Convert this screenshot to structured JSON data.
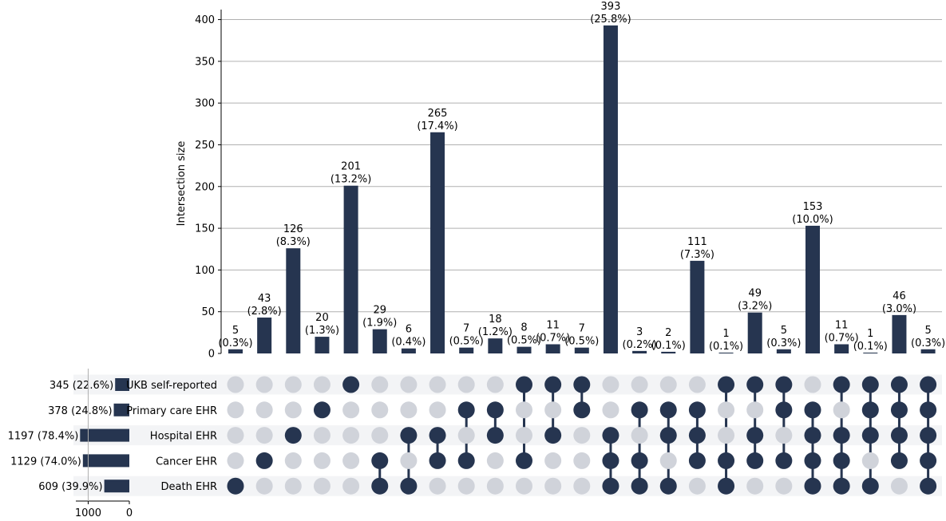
{
  "chart_data": {
    "type": "bar",
    "subtype": "upset",
    "ylabel": "Intersection size",
    "ylim": [
      0,
      412
    ],
    "yticks": [
      0,
      50,
      100,
      150,
      200,
      250,
      300,
      350,
      400
    ],
    "grid": true,
    "colors": {
      "bar": "#263550",
      "dot_active": "#263550",
      "dot_inactive": "#d0d3da",
      "stripe": "#f3f4f6",
      "grid": "#b0b0b0"
    },
    "sets": [
      {
        "name": "UKB self-reported",
        "size": 345,
        "label": "345 (22.6%)"
      },
      {
        "name": "Primary care EHR",
        "size": 378,
        "label": "378 (24.8%)"
      },
      {
        "name": "Hospital EHR",
        "size": 1197,
        "label": "1197 (78.4%)"
      },
      {
        "name": "Cancer EHR",
        "size": 1129,
        "label": "1129 (74.0%)"
      },
      {
        "name": "Death EHR",
        "size": 609,
        "label": "609 (39.9%)"
      }
    ],
    "set_size_xticks": [
      1000,
      0
    ],
    "set_size_xlim": [
      1300,
      0
    ],
    "intersections": [
      {
        "value": 5,
        "pct": "(0.3%)",
        "members": [
          4
        ]
      },
      {
        "value": 43,
        "pct": "(2.8%)",
        "members": [
          3
        ]
      },
      {
        "value": 126,
        "pct": "(8.3%)",
        "members": [
          2
        ]
      },
      {
        "value": 20,
        "pct": "(1.3%)",
        "members": [
          1
        ]
      },
      {
        "value": 201,
        "pct": "(13.2%)",
        "members": [
          0
        ]
      },
      {
        "value": 29,
        "pct": "(1.9%)",
        "members": [
          3,
          4
        ]
      },
      {
        "value": 6,
        "pct": "(0.4%)",
        "members": [
          2,
          4
        ]
      },
      {
        "value": 265,
        "pct": "(17.4%)",
        "members": [
          2,
          3
        ]
      },
      {
        "value": 7,
        "pct": "(0.5%)",
        "members": [
          1,
          3
        ]
      },
      {
        "value": 18,
        "pct": "(1.2%)",
        "members": [
          1,
          2
        ]
      },
      {
        "value": 8,
        "pct": "(0.5%)",
        "members": [
          0,
          3
        ]
      },
      {
        "value": 11,
        "pct": "(0.7%)",
        "members": [
          0,
          2
        ]
      },
      {
        "value": 7,
        "pct": "(0.5%)",
        "members": [
          0,
          1
        ]
      },
      {
        "value": 393,
        "pct": "(25.8%)",
        "members": [
          2,
          3,
          4
        ]
      },
      {
        "value": 3,
        "pct": "(0.2%)",
        "members": [
          1,
          3,
          4
        ]
      },
      {
        "value": 2,
        "pct": "(0.1%)",
        "members": [
          1,
          2,
          4
        ]
      },
      {
        "value": 111,
        "pct": "(7.3%)",
        "members": [
          1,
          2,
          3
        ]
      },
      {
        "value": 1,
        "pct": "(0.1%)",
        "members": [
          0,
          3,
          4
        ]
      },
      {
        "value": 49,
        "pct": "(3.2%)",
        "members": [
          0,
          2,
          3
        ]
      },
      {
        "value": 5,
        "pct": "(0.3%)",
        "members": [
          0,
          1,
          3
        ]
      },
      {
        "value": 153,
        "pct": "(10.0%)",
        "members": [
          1,
          2,
          3,
          4
        ]
      },
      {
        "value": 11,
        "pct": "(0.7%)",
        "members": [
          0,
          2,
          3,
          4
        ]
      },
      {
        "value": 1,
        "pct": "(0.1%)",
        "members": [
          0,
          1,
          2,
          4
        ]
      },
      {
        "value": 46,
        "pct": "(3.0%)",
        "members": [
          0,
          1,
          2,
          3
        ]
      },
      {
        "value": 5,
        "pct": "(0.3%)",
        "members": [
          0,
          1,
          2,
          3,
          4
        ]
      }
    ]
  }
}
